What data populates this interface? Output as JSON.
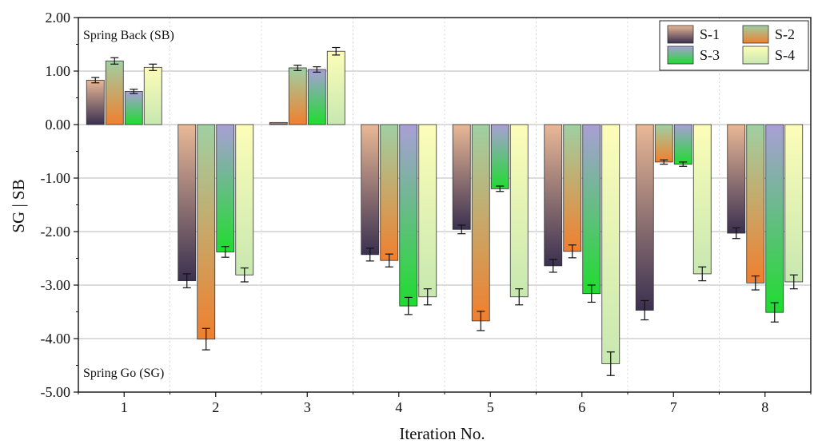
{
  "chart_data": {
    "type": "bar",
    "xlabel": "Iteration No.",
    "ylabel": "SG | SB",
    "ylim": [
      -5.0,
      2.0
    ],
    "yticks": [
      "2.00",
      "1.00",
      "0.00",
      "-1.00",
      "-2.00",
      "-3.00",
      "-4.00",
      "-5.00"
    ],
    "categories": [
      "1",
      "2",
      "3",
      "4",
      "5",
      "6",
      "7",
      "8"
    ],
    "grid": true,
    "legend_position": "top-right",
    "annotations": {
      "top": "Spring Back (SB)",
      "bottom": "Spring Go (SG)"
    },
    "series": [
      {
        "name": "S-1",
        "color": "#3a3050",
        "color_light": "#e9b896",
        "values": [
          0.83,
          -2.92,
          0.04,
          -2.43,
          -1.96,
          -2.64,
          -3.47,
          -2.03
        ],
        "errors": [
          0.05,
          0.13,
          0.0,
          0.12,
          0.08,
          0.12,
          0.18,
          0.1
        ]
      },
      {
        "name": "S-2",
        "color": "#f07f2e",
        "color_light": "#9fd0a3",
        "values": [
          1.19,
          -4.01,
          1.06,
          -2.54,
          -3.67,
          -2.37,
          -0.7,
          -2.96
        ],
        "errors": [
          0.06,
          0.2,
          0.05,
          0.12,
          0.18,
          0.12,
          0.04,
          0.13
        ]
      },
      {
        "name": "S-3",
        "color": "#1fdc2f",
        "color_light": "#a99fd6",
        "values": [
          0.62,
          -2.38,
          1.03,
          -3.39,
          -1.2,
          -3.16,
          -0.74,
          -3.51
        ],
        "errors": [
          0.04,
          0.1,
          0.05,
          0.16,
          0.05,
          0.16,
          0.04,
          0.18
        ]
      },
      {
        "name": "S-4",
        "color": "#c7e8b0",
        "color_light": "#fdfdb8",
        "values": [
          1.07,
          -2.81,
          1.37,
          -3.22,
          -3.22,
          -4.47,
          -2.79,
          -2.94
        ],
        "errors": [
          0.06,
          0.13,
          0.07,
          0.15,
          0.15,
          0.22,
          0.13,
          0.13
        ]
      }
    ]
  }
}
